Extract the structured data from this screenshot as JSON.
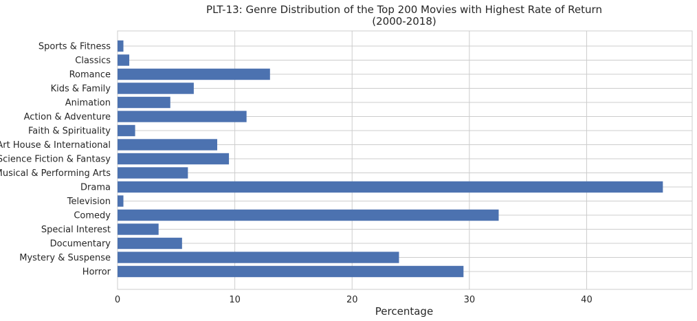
{
  "chart_data": {
    "type": "bar",
    "orientation": "horizontal",
    "title": "PLT-13: Genre Distribution of the Top 200 Movies with Highest Rate of Return",
    "subtitle": "(2000-2018)",
    "xlabel": "Percentage",
    "ylabel": "",
    "xlim": [
      0,
      49
    ],
    "xticks": [
      0,
      10,
      20,
      30,
      40
    ],
    "grid": true,
    "bar_color": "#4c72b0",
    "categories": [
      "Sports & Fitness",
      "Classics",
      "Romance",
      "Kids & Family",
      "Animation",
      "Action & Adventure",
      "Faith & Spirituality",
      "Art House & International",
      "Science Fiction & Fantasy",
      "Musical & Performing Arts",
      "Drama",
      "Television",
      "Comedy",
      "Special Interest",
      "Documentary",
      "Mystery & Suspense",
      "Horror"
    ],
    "values": [
      0.5,
      1.0,
      13.0,
      6.5,
      4.5,
      11.0,
      1.5,
      8.5,
      9.5,
      6.0,
      46.5,
      0.5,
      32.5,
      3.5,
      5.5,
      24.0,
      29.5
    ]
  }
}
